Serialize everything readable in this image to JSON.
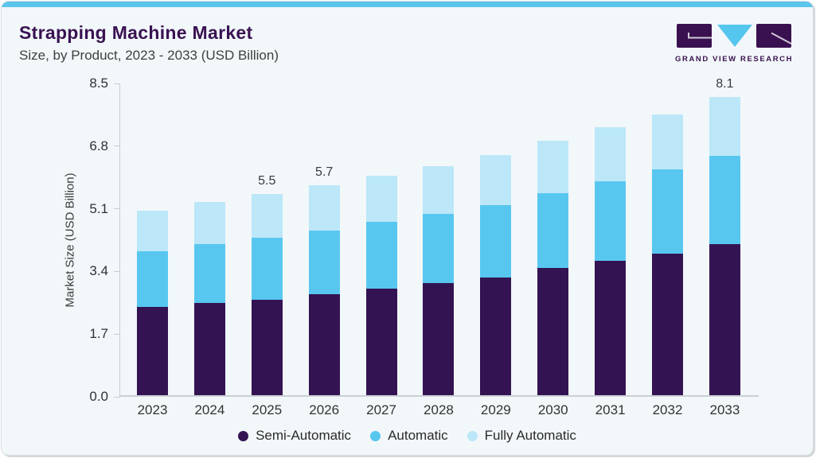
{
  "header": {
    "title": "Strapping Machine Market",
    "subtitle": "Size, by Product, 2023 - 2033 (USD Billion)"
  },
  "logo": {
    "brand": "GRAND VIEW RESEARCH",
    "purple": "#3A1150",
    "blue": "#55C6EE"
  },
  "colors": {
    "card_background": "#F2F7FA",
    "top_strip": "#5BC4EB",
    "title_purple": "#3A1253",
    "axis_line": "#C6CCD2",
    "semi_automatic": "#341352",
    "automatic": "#58C7F0",
    "fully_automatic": "#BCE7F8"
  },
  "chart_data": {
    "type": "bar",
    "stacked": true,
    "title": "Strapping Machine Market Size, by Product, 2023 - 2033 (USD Billion)",
    "ylabel": "Market Size (USD Billion)",
    "xlabel": "",
    "ylim": [
      0,
      8.5
    ],
    "ytick_labels": [
      "0.0",
      "1.7",
      "3.4",
      "5.1",
      "6.8",
      "8.5"
    ],
    "grid": false,
    "legend_position": "bottom",
    "categories": [
      "2023",
      "2024",
      "2025",
      "2026",
      "2027",
      "2028",
      "2029",
      "2030",
      "2031",
      "2032",
      "2033"
    ],
    "series": [
      {
        "name": "Semi-Automatic",
        "color": "#341352",
        "values": [
          2.4,
          2.5,
          2.6,
          2.75,
          2.9,
          3.05,
          3.2,
          3.45,
          3.65,
          3.85,
          4.1
        ]
      },
      {
        "name": "Automatic",
        "color": "#58C7F0",
        "values": [
          1.5,
          1.6,
          1.67,
          1.72,
          1.8,
          1.87,
          1.95,
          2.03,
          2.15,
          2.27,
          2.4
        ]
      },
      {
        "name": "Fully Automatic",
        "color": "#BCE7F8",
        "values": [
          1.1,
          1.15,
          1.18,
          1.23,
          1.26,
          1.3,
          1.36,
          1.42,
          1.47,
          1.5,
          1.6
        ]
      }
    ],
    "bar_total_labels": [
      "",
      "",
      "5.5",
      "5.7",
      "",
      "",
      "",
      "",
      "",
      "",
      "8.1"
    ]
  }
}
